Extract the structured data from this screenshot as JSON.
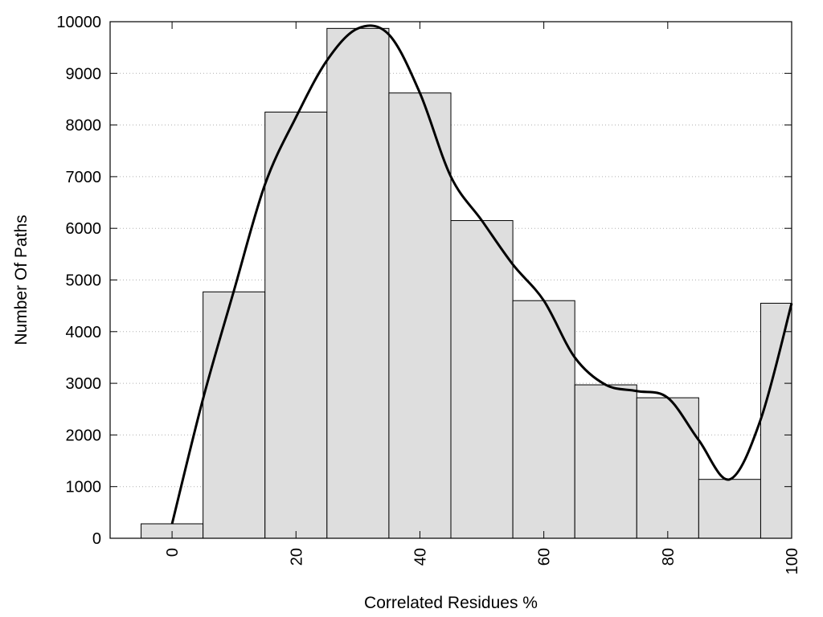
{
  "chart_data": {
    "type": "bar",
    "title": "",
    "xlabel": "Correlated Residues %",
    "ylabel": "Number Of Paths",
    "xlim": [
      -10,
      100
    ],
    "ylim": [
      0,
      10000
    ],
    "x_ticks": [
      0,
      20,
      40,
      60,
      80,
      100
    ],
    "y_ticks": [
      0,
      1000,
      2000,
      3000,
      4000,
      5000,
      6000,
      7000,
      8000,
      9000,
      10000
    ],
    "grid": "horizontal dotted",
    "bin_width": 10,
    "bins": [
      0,
      10,
      20,
      30,
      40,
      50,
      60,
      70,
      80,
      90,
      100
    ],
    "values": [
      280,
      4770,
      8250,
      9870,
      8620,
      6150,
      4600,
      2970,
      2720,
      1140,
      4550
    ],
    "bar_color": "#dedede",
    "curve_color": "#000000",
    "curve": {
      "x": [
        0,
        5,
        10,
        15,
        20,
        25,
        30,
        35,
        40,
        45,
        50,
        55,
        60,
        65,
        70,
        75,
        80,
        85,
        90,
        95,
        100
      ],
      "y": [
        280,
        2700,
        4800,
        6850,
        8150,
        9250,
        9870,
        9750,
        8620,
        7000,
        6150,
        5300,
        4600,
        3500,
        2970,
        2850,
        2720,
        1900,
        1140,
        2300,
        4550
      ]
    }
  }
}
